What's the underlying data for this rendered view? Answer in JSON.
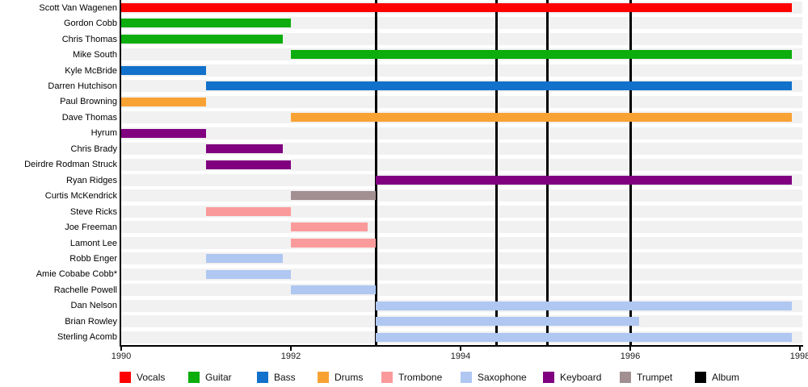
{
  "chart_data": {
    "type": "bar",
    "subtype": "band-member-timeline-gantt",
    "title": "",
    "xlabel": "",
    "ylabel": "",
    "grid": false,
    "legend_position": "bottom",
    "x_axis": {
      "min": 1990,
      "max": 1998,
      "tick_values": [
        1990,
        1992,
        1994,
        1996,
        1998
      ],
      "tick_labels": [
        "1990",
        "1992",
        "1994",
        "1996",
        "1998"
      ]
    },
    "members": [
      {
        "name": "Scott Van Wagenen",
        "instrument": "Vocals",
        "start": 1990,
        "end": 1997.9
      },
      {
        "name": "Gordon Cobb",
        "instrument": "Guitar",
        "start": 1990,
        "end": 1992
      },
      {
        "name": "Chris Thomas",
        "instrument": "Guitar",
        "start": 1990,
        "end": 1991.9
      },
      {
        "name": "Mike South",
        "instrument": "Guitar",
        "start": 1992,
        "end": 1997.9
      },
      {
        "name": "Kyle McBride",
        "instrument": "Bass",
        "start": 1990,
        "end": 1991
      },
      {
        "name": "Darren Hutchison",
        "instrument": "Bass",
        "start": 1991,
        "end": 1997.9
      },
      {
        "name": "Paul Browning",
        "instrument": "Drums",
        "start": 1990,
        "end": 1991
      },
      {
        "name": "Dave Thomas",
        "instrument": "Drums",
        "start": 1992,
        "end": 1997.9
      },
      {
        "name": "Hyrum",
        "instrument": "Keyboard",
        "start": 1990,
        "end": 1991
      },
      {
        "name": "Chris Brady",
        "instrument": "Keyboard",
        "start": 1991,
        "end": 1991.9
      },
      {
        "name": "Deirdre Rodman Struck",
        "instrument": "Keyboard",
        "start": 1991,
        "end": 1992
      },
      {
        "name": "Ryan Ridges",
        "instrument": "Keyboard",
        "start": 1993,
        "end": 1997.9
      },
      {
        "name": "Curtis McKendrick",
        "instrument": "Trumpet",
        "start": 1992,
        "end": 1993
      },
      {
        "name": "Steve Ricks",
        "instrument": "Trombone",
        "start": 1991,
        "end": 1992
      },
      {
        "name": "Joe Freeman",
        "instrument": "Trombone",
        "start": 1992,
        "end": 1992.9
      },
      {
        "name": "Lamont Lee",
        "instrument": "Trombone",
        "start": 1992,
        "end": 1993
      },
      {
        "name": "Robb Enger",
        "instrument": "Saxophone",
        "start": 1991,
        "end": 1991.9
      },
      {
        "name": "Amie Cobabe Cobb*",
        "instrument": "Saxophone",
        "start": 1991,
        "end": 1992
      },
      {
        "name": "Rachelle Powell",
        "instrument": "Saxophone",
        "start": 1992,
        "end": 1993
      },
      {
        "name": "Dan Nelson",
        "instrument": "Saxophone",
        "start": 1993,
        "end": 1997.9
      },
      {
        "name": "Brian Rowley",
        "instrument": "Saxophone",
        "start": 1993,
        "end": 1996.1
      },
      {
        "name": "Sterling Acomb",
        "instrument": "Saxophone",
        "start": 1993,
        "end": 1997.9
      }
    ],
    "album_release_lines": [
      1993.0,
      1994.42,
      1995.02,
      1996.0
    ],
    "legend": [
      {
        "label": "Vocals",
        "color": "#FF0000"
      },
      {
        "label": "Guitar",
        "color": "#0CAD0C"
      },
      {
        "label": "Bass",
        "color": "#1171CB"
      },
      {
        "label": "Drums",
        "color": "#F9A234"
      },
      {
        "label": "Trombone",
        "color": "#FB9A9A"
      },
      {
        "label": "Saxophone",
        "color": "#AFC7F1"
      },
      {
        "label": "Keyboard",
        "color": "#800080"
      },
      {
        "label": "Trumpet",
        "color": "#A18F92"
      },
      {
        "label": "Album",
        "color": "#000000"
      }
    ],
    "row_background_color": "#F1F1F1"
  }
}
